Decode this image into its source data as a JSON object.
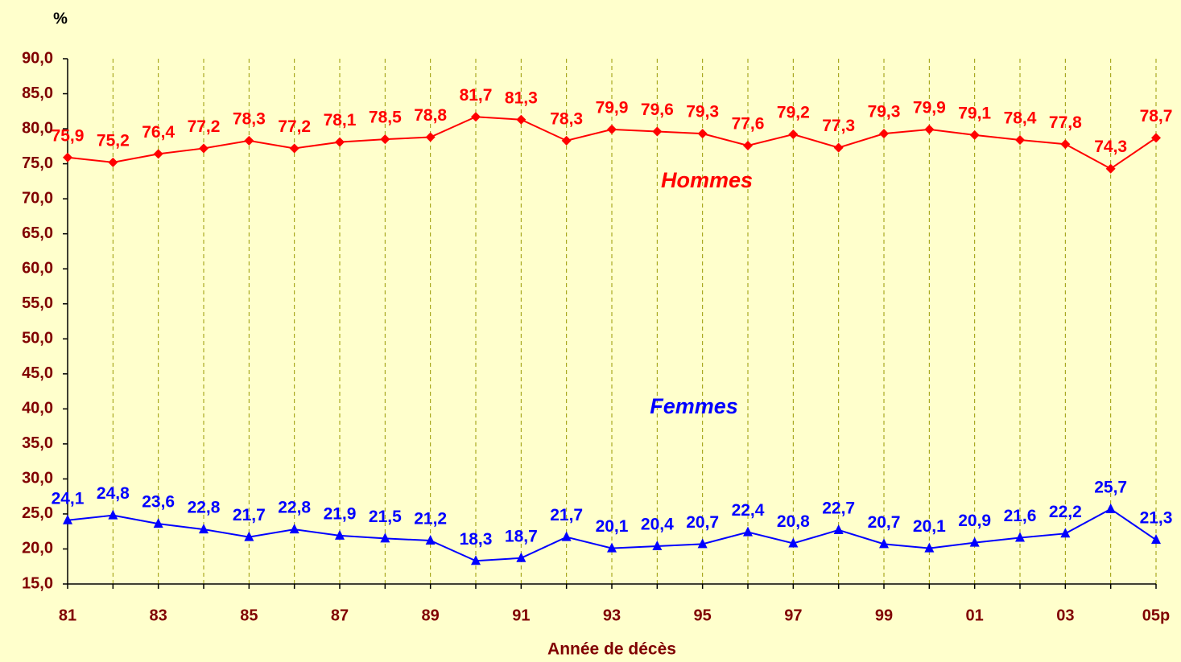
{
  "chart_data": {
    "type": "line",
    "unit_label": "%",
    "x_label": "Année de décès",
    "categories": [
      "81",
      null,
      "83",
      null,
      "85",
      null,
      "87",
      null,
      "89",
      null,
      "91",
      null,
      "93",
      null,
      "95",
      null,
      "97",
      null,
      "99",
      null,
      "01",
      null,
      "03",
      null,
      "05p"
    ],
    "ylim": [
      15,
      90
    ],
    "yticks": [
      {
        "value": 15,
        "label": "15,0"
      },
      {
        "value": 20,
        "label": "20,0"
      },
      {
        "value": 25,
        "label": "25,0"
      },
      {
        "value": 30,
        "label": "30,0"
      },
      {
        "value": 35,
        "label": "35,0"
      },
      {
        "value": 40,
        "label": "40,0"
      },
      {
        "value": 45,
        "label": "45,0"
      },
      {
        "value": 50,
        "label": "50,0"
      },
      {
        "value": 55,
        "label": "55,0"
      },
      {
        "value": 60,
        "label": "60,0"
      },
      {
        "value": 65,
        "label": "65,0"
      },
      {
        "value": 70,
        "label": "70,0"
      },
      {
        "value": 75,
        "label": "75,0"
      },
      {
        "value": 80,
        "label": "80,0"
      },
      {
        "value": 85,
        "label": "85,0"
      },
      {
        "value": 90,
        "label": "90,0"
      }
    ],
    "grid": "x",
    "series": [
      {
        "name": "Hommes",
        "color": "#FF0000",
        "marker": "diamond",
        "values": [
          75.9,
          75.2,
          76.4,
          77.2,
          78.3,
          77.2,
          78.1,
          78.5,
          78.8,
          81.7,
          81.3,
          78.3,
          79.9,
          79.6,
          79.3,
          77.6,
          79.2,
          77.3,
          79.3,
          79.9,
          79.1,
          78.4,
          77.8,
          74.3,
          78.7
        ],
        "value_labels": [
          "75,9",
          "75,2",
          "76,4",
          "77,2",
          "78,3",
          "77,2",
          "78,1",
          "78,5",
          "78,8",
          "81,7",
          "81,3",
          "78,3",
          "79,9",
          "79,6",
          "79,3",
          "77,6",
          "79,2",
          "77,3",
          "79,3",
          "79,9",
          "79,1",
          "78,4",
          "77,8",
          "74,3",
          "78,7"
        ]
      },
      {
        "name": "Femmes",
        "color": "#0000FF",
        "marker": "triangle",
        "values": [
          24.1,
          24.8,
          23.6,
          22.8,
          21.7,
          22.8,
          21.9,
          21.5,
          21.2,
          18.3,
          18.7,
          21.7,
          20.1,
          20.4,
          20.7,
          22.4,
          20.8,
          22.7,
          20.7,
          20.1,
          20.9,
          21.6,
          22.2,
          25.7,
          21.3
        ],
        "value_labels": [
          "24,1",
          "24,8",
          "23,6",
          "22,8",
          "21,7",
          "22,8",
          "21,9",
          "21,5",
          "21,2",
          "18,3",
          "18,7",
          "21,7",
          "20,1",
          "20,4",
          "20,7",
          "22,4",
          "20,8",
          "22,7",
          "20,7",
          "20,1",
          "20,9",
          "21,6",
          "22,2",
          "25,7",
          "21,3"
        ]
      }
    ]
  }
}
